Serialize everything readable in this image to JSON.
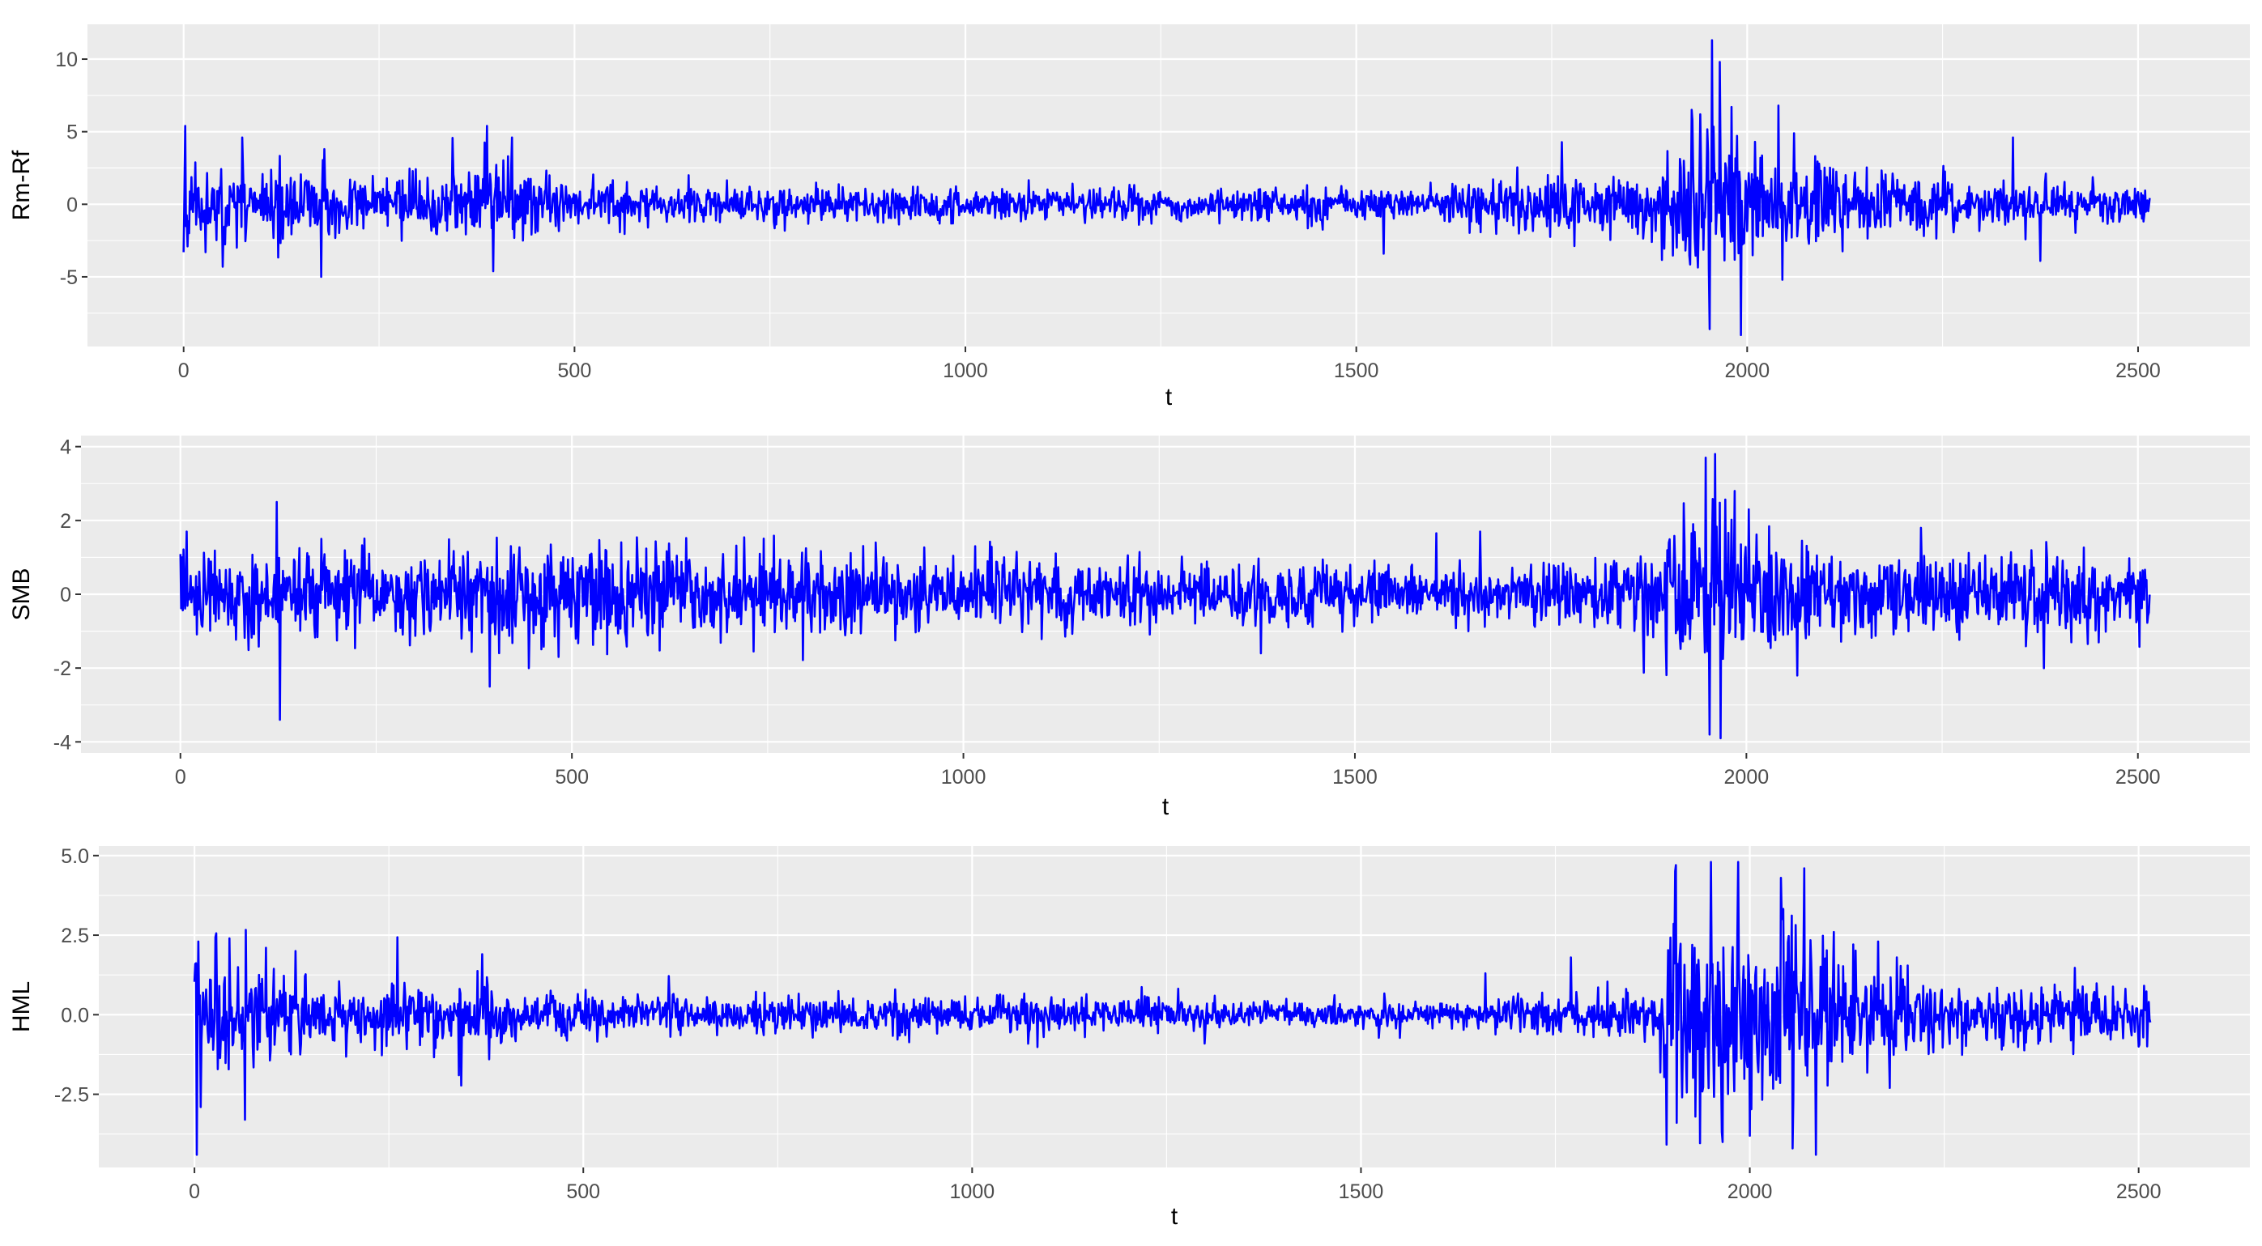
{
  "chart_data": [
    {
      "type": "line",
      "title": "",
      "xlabel": "t",
      "ylabel": "Rm-Rf",
      "xlim": [
        -123,
        2643
      ],
      "ylim": [
        -9.8,
        12.4
      ],
      "xticks": [
        0,
        500,
        1000,
        1500,
        2000,
        2500
      ],
      "xtick_labels": [
        "0",
        "500",
        "1000",
        "1500",
        "2000",
        "2500"
      ],
      "yticks": [
        -5,
        0,
        5,
        10
      ],
      "ytick_labels": [
        "-5",
        "0",
        "5",
        "10"
      ],
      "grid": true,
      "legend": "none",
      "n_points": 2516,
      "color": "#0000FF",
      "seed": 11,
      "volatility_regimes": [
        {
          "t": 0,
          "sd": 1.2
        },
        {
          "t": 60,
          "sd": 1.2
        },
        {
          "t": 200,
          "sd": 0.9
        },
        {
          "t": 330,
          "sd": 1.0
        },
        {
          "t": 400,
          "sd": 1.35
        },
        {
          "t": 480,
          "sd": 0.9
        },
        {
          "t": 600,
          "sd": 0.65
        },
        {
          "t": 900,
          "sd": 0.55
        },
        {
          "t": 1300,
          "sd": 0.55
        },
        {
          "t": 1600,
          "sd": 0.55
        },
        {
          "t": 1650,
          "sd": 0.8
        },
        {
          "t": 1800,
          "sd": 1.0
        },
        {
          "t": 1880,
          "sd": 1.2
        },
        {
          "t": 1930,
          "sd": 2.6
        },
        {
          "t": 1990,
          "sd": 2.3
        },
        {
          "t": 2060,
          "sd": 1.6
        },
        {
          "t": 2150,
          "sd": 1.0
        },
        {
          "t": 2300,
          "sd": 0.8
        },
        {
          "t": 2400,
          "sd": 0.7
        },
        {
          "t": 2515,
          "sd": 0.6
        }
      ],
      "highlights": [
        {
          "t": 0,
          "y": -3.3
        },
        {
          "t": 2,
          "y": 5.4
        },
        {
          "t": 5,
          "y": -2.9
        },
        {
          "t": 50,
          "y": -4.3
        },
        {
          "t": 75,
          "y": 4.6
        },
        {
          "t": 176,
          "y": -5.0
        },
        {
          "t": 180,
          "y": 3.8
        },
        {
          "t": 388,
          "y": 5.4
        },
        {
          "t": 420,
          "y": 4.6
        },
        {
          "t": 1535,
          "y": -3.4
        },
        {
          "t": 1940,
          "y": 6.2
        },
        {
          "t": 1952,
          "y": -8.6
        },
        {
          "t": 1955,
          "y": 11.3
        },
        {
          "t": 1965,
          "y": 9.8
        },
        {
          "t": 1980,
          "y": 6.7
        },
        {
          "t": 1992,
          "y": -9.0
        },
        {
          "t": 2010,
          "y": 4.3
        },
        {
          "t": 2040,
          "y": 6.8
        },
        {
          "t": 2045,
          "y": -5.2
        },
        {
          "t": 2060,
          "y": 4.9
        },
        {
          "t": 2340,
          "y": 4.6
        },
        {
          "t": 2375,
          "y": -3.9
        }
      ]
    },
    {
      "type": "line",
      "title": "",
      "xlabel": "t",
      "ylabel": "SMB",
      "xlim": [
        -127,
        2643
      ],
      "ylim": [
        -4.3,
        4.3
      ],
      "xticks": [
        0,
        500,
        1000,
        1500,
        2000,
        2500
      ],
      "xtick_labels": [
        "0",
        "500",
        "1000",
        "1500",
        "2000",
        "2500"
      ],
      "yticks": [
        -4,
        -2,
        0,
        2,
        4
      ],
      "ytick_labels": [
        "-4",
        "-2",
        "0",
        "2",
        "4"
      ],
      "grid": true,
      "legend": "none",
      "n_points": 2516,
      "color": "#0000FF",
      "seed": 23,
      "volatility_regimes": [
        {
          "t": 0,
          "sd": 0.55
        },
        {
          "t": 300,
          "sd": 0.55
        },
        {
          "t": 350,
          "sd": 0.7
        },
        {
          "t": 450,
          "sd": 0.6
        },
        {
          "t": 900,
          "sd": 0.5
        },
        {
          "t": 1500,
          "sd": 0.4
        },
        {
          "t": 1650,
          "sd": 0.38
        },
        {
          "t": 1850,
          "sd": 0.5
        },
        {
          "t": 1940,
          "sd": 1.3
        },
        {
          "t": 2000,
          "sd": 0.9
        },
        {
          "t": 2100,
          "sd": 0.6
        },
        {
          "t": 2350,
          "sd": 0.5
        },
        {
          "t": 2515,
          "sd": 0.45
        }
      ],
      "highlights": [
        {
          "t": 2,
          "y": 1.0
        },
        {
          "t": 8,
          "y": 1.7
        },
        {
          "t": 123,
          "y": 2.5
        },
        {
          "t": 127,
          "y": -3.4
        },
        {
          "t": 180,
          "y": 1.5
        },
        {
          "t": 395,
          "y": -2.5
        },
        {
          "t": 445,
          "y": -2.0
        },
        {
          "t": 1015,
          "y": 1.3
        },
        {
          "t": 1380,
          "y": -1.6
        },
        {
          "t": 1660,
          "y": 1.7
        },
        {
          "t": 1645,
          "y": -1.0
        },
        {
          "t": 1948,
          "y": 3.7
        },
        {
          "t": 1953,
          "y": -3.8
        },
        {
          "t": 1960,
          "y": 3.8
        },
        {
          "t": 1967,
          "y": -3.9
        },
        {
          "t": 1985,
          "y": 2.8
        },
        {
          "t": 2003,
          "y": 2.3
        },
        {
          "t": 2065,
          "y": -2.2
        },
        {
          "t": 2380,
          "y": -2.0
        },
        {
          "t": 2415,
          "y": -1.3
        }
      ]
    },
    {
      "type": "line",
      "title": "",
      "xlabel": "t",
      "ylabel": "HML",
      "xlim": [
        -123,
        2643
      ],
      "ylim": [
        -4.8,
        5.3
      ],
      "xticks": [
        0,
        500,
        1000,
        1500,
        2000,
        2500
      ],
      "xtick_labels": [
        "0",
        "500",
        "1000",
        "1500",
        "2000",
        "2500"
      ],
      "yticks": [
        -2.5,
        0,
        2.5,
        5
      ],
      "ytick_labels": [
        "-2.5",
        "0.0",
        "2.5",
        "5.0"
      ],
      "grid": true,
      "legend": "none",
      "n_points": 2516,
      "color": "#0000FF",
      "seed": 37,
      "volatility_regimes": [
        {
          "t": 0,
          "sd": 0.9
        },
        {
          "t": 80,
          "sd": 0.85
        },
        {
          "t": 180,
          "sd": 0.45
        },
        {
          "t": 330,
          "sd": 0.45
        },
        {
          "t": 380,
          "sd": 0.5
        },
        {
          "t": 500,
          "sd": 0.3
        },
        {
          "t": 900,
          "sd": 0.3
        },
        {
          "t": 1500,
          "sd": 0.2
        },
        {
          "t": 1650,
          "sd": 0.2
        },
        {
          "t": 1700,
          "sd": 0.35
        },
        {
          "t": 1880,
          "sd": 0.3
        },
        {
          "t": 1900,
          "sd": 1.8
        },
        {
          "t": 2000,
          "sd": 1.7
        },
        {
          "t": 2100,
          "sd": 1.3
        },
        {
          "t": 2150,
          "sd": 0.7
        },
        {
          "t": 2300,
          "sd": 0.5
        },
        {
          "t": 2515,
          "sd": 0.4
        }
      ],
      "highlights": [
        {
          "t": 1,
          "y": 1.6
        },
        {
          "t": 3,
          "y": -4.4
        },
        {
          "t": 5,
          "y": 2.3
        },
        {
          "t": 8,
          "y": -2.9
        },
        {
          "t": 45,
          "y": 2.4
        },
        {
          "t": 65,
          "y": -3.3
        },
        {
          "t": 130,
          "y": 2.0
        },
        {
          "t": 370,
          "y": 1.9
        },
        {
          "t": 340,
          "y": -1.9
        },
        {
          "t": 1660,
          "y": 1.3
        },
        {
          "t": 1770,
          "y": 1.8
        },
        {
          "t": 1905,
          "y": 4.7
        },
        {
          "t": 1930,
          "y": -3.2
        },
        {
          "t": 1950,
          "y": 4.8
        },
        {
          "t": 1965,
          "y": -4.0
        },
        {
          "t": 1985,
          "y": 4.8
        },
        {
          "t": 2000,
          "y": -3.8
        },
        {
          "t": 2040,
          "y": 4.3
        },
        {
          "t": 2055,
          "y": -4.2
        },
        {
          "t": 2070,
          "y": 4.6
        },
        {
          "t": 2085,
          "y": -4.4
        },
        {
          "t": 2165,
          "y": 2.3
        },
        {
          "t": 2180,
          "y": -2.3
        }
      ]
    }
  ]
}
